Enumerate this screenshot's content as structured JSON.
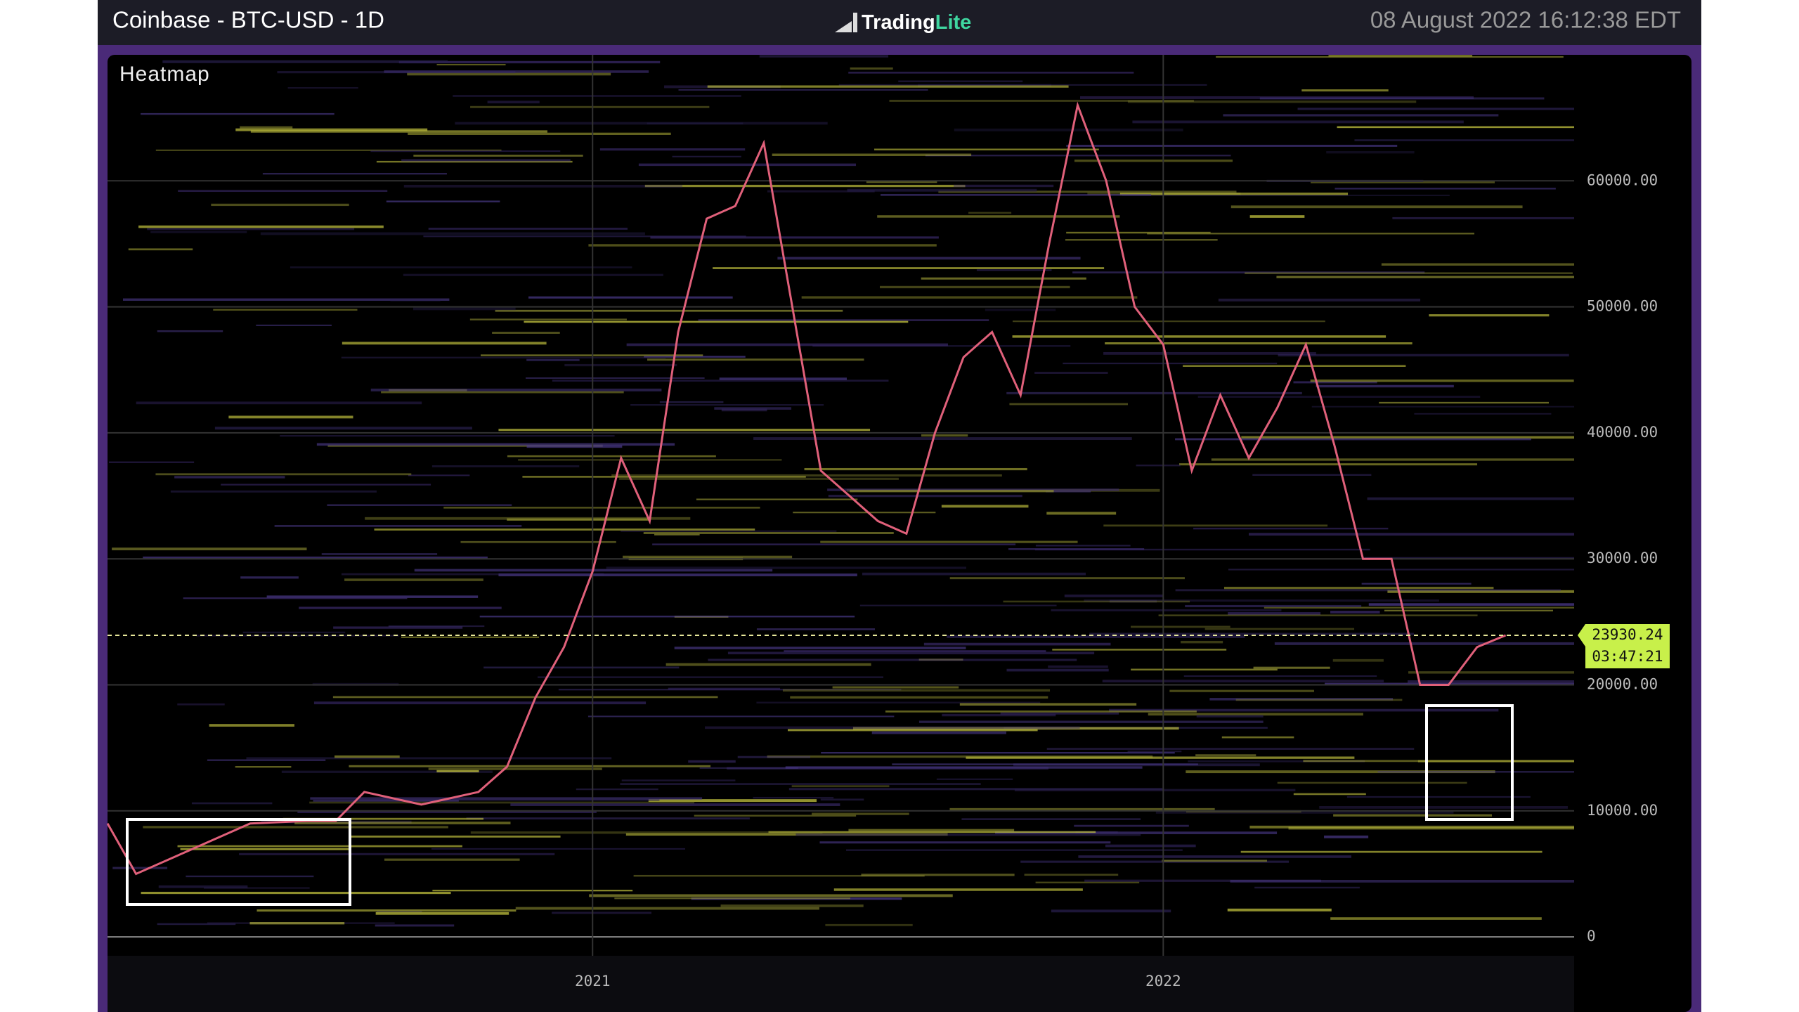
{
  "header": {
    "title": "Coinbase - BTC-USD - 1D",
    "brand": "Trading",
    "brand_accent": "Lite",
    "timestamp": "08 August 2022 16:12:38 EDT"
  },
  "chart_data": {
    "type": "line",
    "title": "Heatmap",
    "color": "#e0607a",
    "x": [
      2020.15,
      2020.2,
      2020.3,
      2020.4,
      2020.5,
      2020.55,
      2020.6,
      2020.7,
      2020.8,
      2020.85,
      2020.9,
      2020.95,
      2021.0,
      2021.05,
      2021.1,
      2021.15,
      2021.2,
      2021.25,
      2021.3,
      2021.35,
      2021.4,
      2021.45,
      2021.5,
      2021.55,
      2021.6,
      2021.65,
      2021.7,
      2021.75,
      2021.8,
      2021.85,
      2021.9,
      2021.95,
      2022.0,
      2022.05,
      2022.1,
      2022.15,
      2022.2,
      2022.25,
      2022.3,
      2022.35,
      2022.4,
      2022.45,
      2022.5,
      2022.55,
      2022.6
    ],
    "values": [
      9000,
      5000,
      7000,
      9000,
      9200,
      9200,
      11500,
      10500,
      11500,
      13500,
      19000,
      23000,
      29000,
      38000,
      33000,
      48000,
      57000,
      58000,
      63000,
      50000,
      37000,
      35000,
      33000,
      32000,
      40000,
      46000,
      48000,
      43000,
      55000,
      66000,
      60000,
      50000,
      47000,
      37000,
      43000,
      38000,
      42000,
      47000,
      39000,
      30000,
      30000,
      20000,
      20000,
      23000,
      23930.24
    ],
    "xlim": [
      2020.15,
      2022.72
    ],
    "xticks": [
      2021,
      2022
    ],
    "ylim": [
      -1500,
      70000
    ],
    "yticks": [
      0,
      {
        "value": 10000,
        "label": "10000.00"
      },
      {
        "value": 20000,
        "label": "20000.00"
      },
      {
        "value": 30000,
        "label": "30000.00"
      },
      {
        "value": 40000,
        "label": "40000.00"
      },
      {
        "value": 50000,
        "label": "50000.00"
      },
      {
        "value": 60000,
        "label": "60000.00"
      }
    ],
    "current_price": 23930.24,
    "countdown": "03:47:21",
    "grid": true
  }
}
